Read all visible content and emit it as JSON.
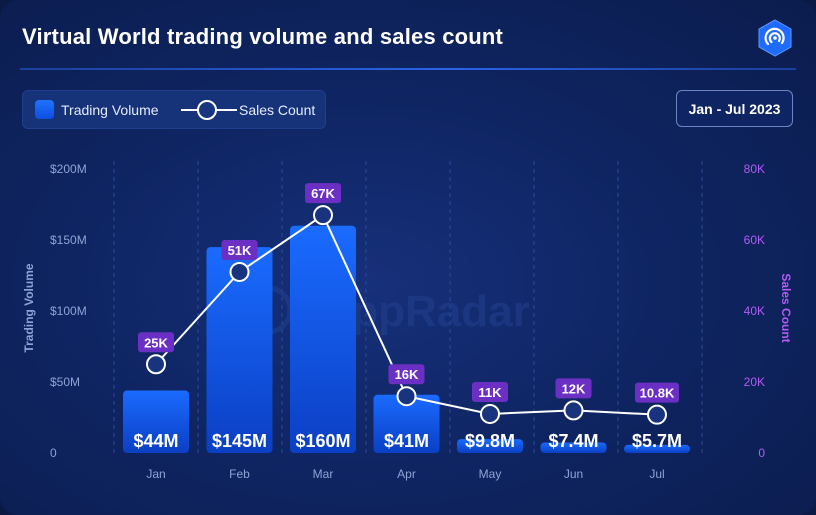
{
  "title": "Virtual World trading volume and sales count",
  "logo": "dappradar-logo-icon",
  "watermark": "DappRadar",
  "legend": {
    "bar_label": "Trading Volume",
    "line_label": "Sales Count"
  },
  "date_range": "Jan - Jul 2023",
  "colors": {
    "bar": "#1565f5",
    "line": "#ffffff",
    "label_badge": "#6b2fc4",
    "right_axis": "#b25cf5",
    "left_axis": "#8fa3d6"
  },
  "chart_data": {
    "type": "bar",
    "title": "Virtual World trading volume and sales count",
    "categories": [
      "Jan",
      "Feb",
      "Mar",
      "Apr",
      "May",
      "Jun",
      "Jul"
    ],
    "series": [
      {
        "name": "Trading Volume",
        "axis": "left",
        "type": "bar",
        "values": [
          44,
          145,
          160,
          41,
          9.8,
          7.4,
          5.7
        ],
        "labels": [
          "$44M",
          "$145M",
          "$160M",
          "$41M",
          "$9.8M",
          "$7.4M",
          "$5.7M"
        ]
      },
      {
        "name": "Sales Count",
        "axis": "right",
        "type": "line",
        "values": [
          25,
          51,
          67,
          16,
          11,
          12,
          10.8
        ],
        "labels": [
          "25K",
          "51K",
          "67K",
          "16K",
          "11K",
          "12K",
          "10.8K"
        ]
      }
    ],
    "ylabel_left": "Trading Volume",
    "ylabel_right": "Sales Count",
    "ylim_left": [
      0,
      200
    ],
    "ylim_right": [
      0,
      80
    ],
    "yticks_left": [
      "0",
      "$50M",
      "$100M",
      "$150M",
      "$200M"
    ],
    "yticks_right": [
      "0",
      "20K",
      "40K",
      "60K",
      "80K"
    ],
    "grid": "vertical-dashed",
    "legend_position": "top-left"
  }
}
